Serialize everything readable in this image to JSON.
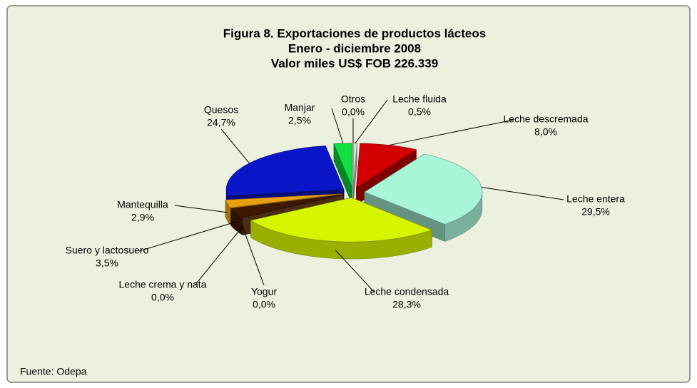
{
  "chart_data": {
    "type": "pie3d",
    "title": [
      "Figura 8. Exportaciones  de productos  lácteos",
      "Enero - diciembre 2008",
      "Valor miles US$ FOB 226.339"
    ],
    "source": "Fuente: Odepa",
    "categories": [
      "Leche fluida",
      "Leche descremada",
      "Leche entera",
      "Leche condensada",
      "Yogur",
      "Leche crema y nata",
      "Suero y lactosuero",
      "Mantequilla",
      "Quesos",
      "Manjar",
      "Otros"
    ],
    "values": [
      0.5,
      8.0,
      29.5,
      28.3,
      0.0,
      0.0,
      3.5,
      2.9,
      24.7,
      2.5,
      0.0
    ],
    "value_labels": [
      "0,5%",
      "8,0%",
      "29,5%",
      "28,3%",
      "0,0%",
      "0,0%",
      "3,5%",
      "2,9%",
      "24,7%",
      "2,5%",
      "0,0%"
    ],
    "colors": [
      "#d8d8d8",
      "#d40000",
      "#a8f5d8",
      "#d6f500",
      "#6b3a10",
      "#7a4a20",
      "#3f1800",
      "#e8a010",
      "#0a16c8",
      "#10e040",
      "#e0e0e0"
    ]
  }
}
